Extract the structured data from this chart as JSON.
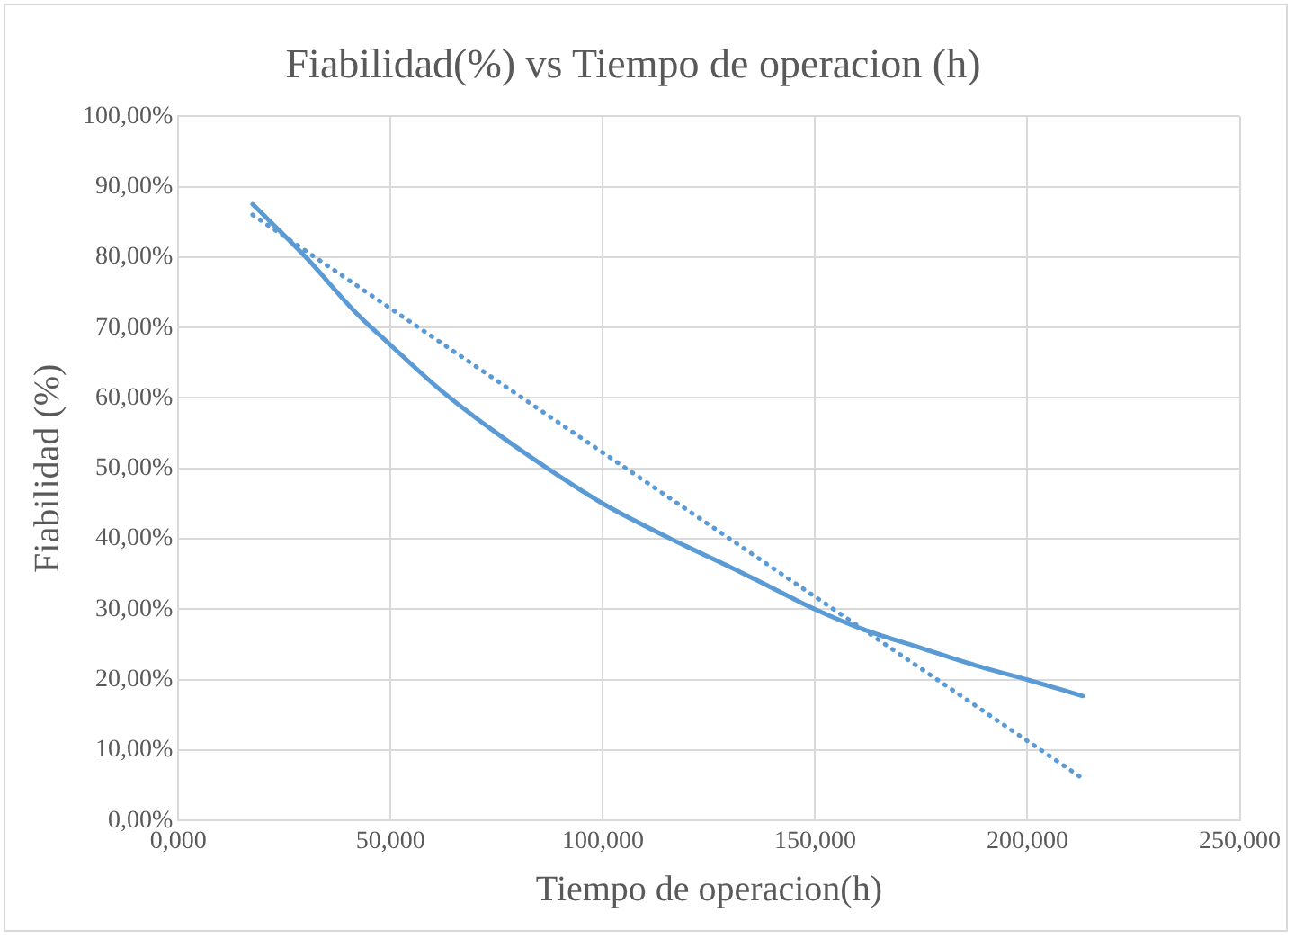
{
  "chart_data": {
    "type": "line",
    "title": "Fiabilidad(%) vs Tiempo de operacion (h)",
    "xlabel": "Tiempo de operacion(h)",
    "ylabel": "Fiabilidad (%)",
    "series": [
      {
        "color": "#5b9bd5",
        "line_style": "solid",
        "x": [
          17.5,
          30,
          42,
          50,
          62,
          75,
          92,
          100,
          116,
          130,
          140,
          150,
          162,
          175,
          188,
          200,
          213
        ],
        "values": [
          87.5,
          80,
          72,
          67.5,
          61,
          55,
          48,
          45,
          40,
          36,
          33,
          30,
          27,
          24.5,
          22,
          20,
          17.7
        ]
      },
      {
        "color": "#5b9bd5",
        "line_style": "dotted",
        "x": [
          17.5,
          213
        ],
        "values": [
          86,
          6
        ]
      }
    ],
    "xlim": [
      0,
      250
    ],
    "xticks": [
      {
        "value": 0,
        "label": "0,000"
      },
      {
        "value": 50,
        "label": "50,000"
      },
      {
        "value": 100,
        "label": "100,000"
      },
      {
        "value": 150,
        "label": "150,000"
      },
      {
        "value": 200,
        "label": "200,000"
      },
      {
        "value": 250,
        "label": "250,000"
      }
    ],
    "ylim": [
      0,
      100
    ],
    "yticks": [
      {
        "value": 0,
        "label": "0,00%"
      },
      {
        "value": 10,
        "label": "10,00%"
      },
      {
        "value": 20,
        "label": "20,00%"
      },
      {
        "value": 30,
        "label": "30,00%"
      },
      {
        "value": 40,
        "label": "40,00%"
      },
      {
        "value": 50,
        "label": "50,00%"
      },
      {
        "value": 60,
        "label": "60,00%"
      },
      {
        "value": 70,
        "label": "70,00%"
      },
      {
        "value": 80,
        "label": "80,00%"
      },
      {
        "value": 90,
        "label": "90,00%"
      },
      {
        "value": 100,
        "label": "100,00%"
      }
    ],
    "grid": true,
    "legend": false,
    "marker": "none"
  }
}
